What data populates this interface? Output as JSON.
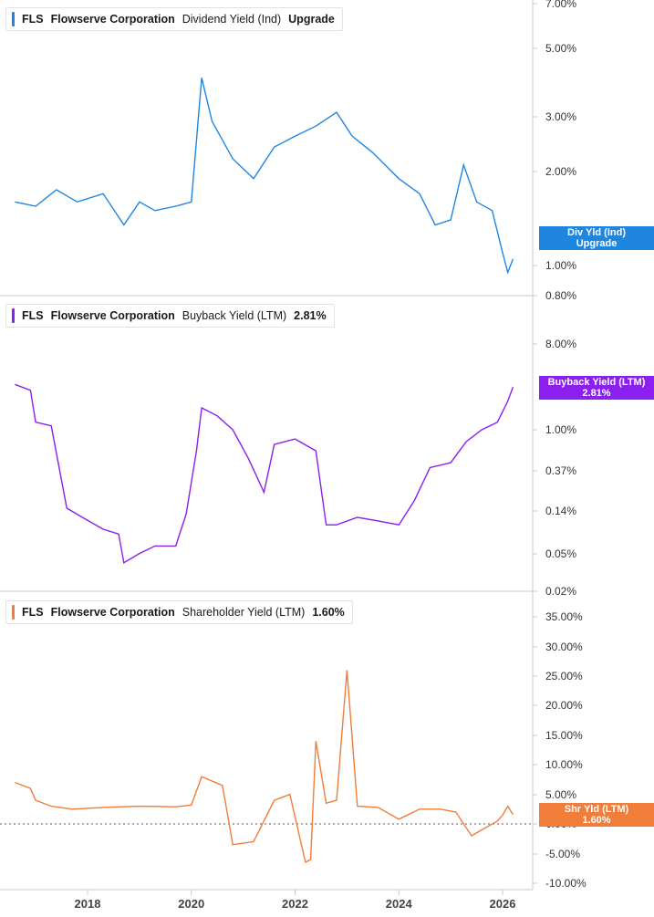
{
  "colors": {
    "dividend": "#1f86e0",
    "buyback": "#8a1ff0",
    "shareholder": "#f07d3a",
    "axis": "#c8c8c8",
    "zero_line": "#555555"
  },
  "panels": [
    {
      "ticker": "FLS",
      "company": "Flowserve Corporation",
      "metric": "Dividend Yield (Ind)",
      "value": "Upgrade",
      "tag_line1": "Div Yld (Ind)",
      "tag_line2": "Upgrade"
    },
    {
      "ticker": "FLS",
      "company": "Flowserve Corporation",
      "metric": "Buyback Yield (LTM)",
      "value": "2.81%",
      "tag_line1": "Buyback Yield (LTM)",
      "tag_line2": "2.81%"
    },
    {
      "ticker": "FLS",
      "company": "Flowserve Corporation",
      "metric": "Shareholder Yield (LTM)",
      "value": "1.60%",
      "tag_line1": "Shr Yld (LTM)",
      "tag_line2": "1.60%"
    }
  ],
  "chart_data": [
    {
      "type": "line",
      "series": [
        {
          "name": "Dividend Yield (Ind)",
          "x": [
            2016.6,
            2017.0,
            2017.4,
            2017.8,
            2018.3,
            2018.7,
            2019.0,
            2019.3,
            2019.7,
            2020.0,
            2020.2,
            2020.4,
            2020.8,
            2021.2,
            2021.6,
            2022.0,
            2022.4,
            2022.8,
            2023.1,
            2023.5,
            2024.0,
            2024.4,
            2024.7,
            2025.0,
            2025.25,
            2025.5,
            2025.8,
            2026.0,
            2026.1,
            2026.2
          ],
          "y": [
            1.6,
            1.55,
            1.75,
            1.6,
            1.7,
            1.35,
            1.6,
            1.5,
            1.55,
            1.6,
            4.0,
            2.9,
            2.2,
            1.9,
            2.4,
            2.6,
            2.8,
            3.1,
            2.6,
            2.3,
            1.9,
            1.7,
            1.35,
            1.4,
            2.1,
            1.6,
            1.5,
            1.1,
            0.95,
            1.05
          ]
        }
      ],
      "yticks": [
        "7.00%",
        "5.00%",
        "3.00%",
        "2.00%",
        "1.00%",
        "0.80%"
      ],
      "scale": "log"
    },
    {
      "type": "line",
      "series": [
        {
          "name": "Buyback Yield (LTM)",
          "x": [
            2016.6,
            2016.9,
            2017.0,
            2017.3,
            2017.6,
            2017.9,
            2018.3,
            2018.6,
            2018.7,
            2019.0,
            2019.3,
            2019.7,
            2019.9,
            2020.1,
            2020.2,
            2020.5,
            2020.8,
            2021.1,
            2021.4,
            2021.6,
            2022.0,
            2022.4,
            2022.6,
            2022.8,
            2023.2,
            2023.6,
            2024.0,
            2024.3,
            2024.6,
            2025.0,
            2025.3,
            2025.6,
            2025.9,
            2026.1,
            2026.2
          ],
          "y": [
            3.0,
            2.6,
            1.2,
            1.1,
            0.15,
            0.12,
            0.09,
            0.08,
            0.04,
            0.05,
            0.06,
            0.06,
            0.13,
            0.6,
            1.7,
            1.4,
            1.0,
            0.5,
            0.22,
            0.7,
            0.8,
            0.6,
            0.1,
            0.1,
            0.12,
            0.11,
            0.1,
            0.18,
            0.4,
            0.45,
            0.75,
            1.0,
            1.2,
            2.0,
            2.81
          ]
        }
      ],
      "yticks": [
        "8.00%",
        "1.00%",
        "0.37%",
        "0.14%",
        "0.05%",
        "0.02%"
      ],
      "scale": "log"
    },
    {
      "type": "line",
      "series": [
        {
          "name": "Shareholder Yield (LTM)",
          "x": [
            2016.6,
            2016.9,
            2017.0,
            2017.3,
            2017.7,
            2018.3,
            2019.0,
            2019.7,
            2020.0,
            2020.2,
            2020.6,
            2020.8,
            2021.2,
            2021.6,
            2021.9,
            2022.2,
            2022.3,
            2022.4,
            2022.6,
            2022.8,
            2023.0,
            2023.2,
            2023.6,
            2024.0,
            2024.4,
            2024.8,
            2025.1,
            2025.4,
            2025.6,
            2025.9,
            2026.0,
            2026.1,
            2026.2
          ],
          "y": [
            7.0,
            6.0,
            4.0,
            3.0,
            2.5,
            2.8,
            3.0,
            2.9,
            3.2,
            8.0,
            6.5,
            -3.5,
            -3.0,
            4.0,
            5.0,
            -6.5,
            -6.0,
            14.0,
            3.5,
            4.0,
            26.0,
            3.0,
            2.8,
            0.8,
            2.5,
            2.5,
            2.0,
            -2.0,
            -1.0,
            0.5,
            1.5,
            3.0,
            1.6
          ]
        }
      ],
      "yticks": [
        "35.00%",
        "30.00%",
        "25.00%",
        "20.00%",
        "15.00%",
        "10.00%",
        "5.00%",
        "0.00%",
        "-5.00%",
        "-10.00%"
      ],
      "scale": "linear"
    }
  ],
  "xticks": [
    "2018",
    "2020",
    "2022",
    "2024",
    "2026"
  ]
}
